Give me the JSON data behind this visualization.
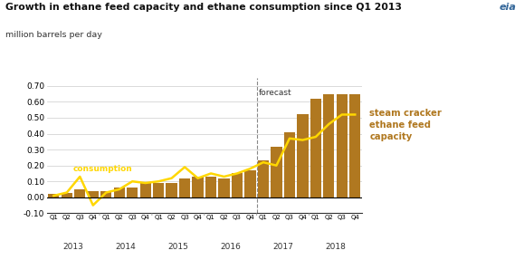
{
  "title": "Growth in ethane feed capacity and ethane consumption since Q1 2013",
  "subtitle": "million barrels per day",
  "bar_color": "#b07820",
  "line_color": "#ffd700",
  "line_label_color": "#ffd700",
  "bar_label_color": "#b07820",
  "forecast_line_color": "#888888",
  "background_color": "#ffffff",
  "text_color": "#333333",
  "ylim": [
    -0.1,
    0.75
  ],
  "yticks": [
    -0.1,
    0.0,
    0.1,
    0.2,
    0.3,
    0.4,
    0.5,
    0.6,
    0.7
  ],
  "forecast_index": 16,
  "labels": [
    "Q1",
    "Q2",
    "Q3",
    "Q4",
    "Q1",
    "Q2",
    "Q3",
    "Q4",
    "Q1",
    "Q2",
    "Q3",
    "Q4",
    "Q1",
    "Q2",
    "Q3",
    "Q4",
    "Q1",
    "Q2",
    "Q3",
    "Q4",
    "Q1",
    "Q2",
    "Q3",
    "Q4"
  ],
  "year_labels": [
    "2013",
    "2014",
    "2015",
    "2016",
    "2017",
    "2018"
  ],
  "year_centers": [
    1.5,
    5.5,
    9.5,
    13.5,
    17.5,
    21.5
  ],
  "bar_values": [
    0.02,
    0.03,
    0.05,
    0.04,
    0.04,
    0.06,
    0.06,
    0.09,
    0.09,
    0.09,
    0.12,
    0.13,
    0.13,
    0.12,
    0.15,
    0.17,
    0.23,
    0.32,
    0.41,
    0.52,
    0.62,
    0.65,
    0.65,
    0.65
  ],
  "line_values": [
    0.01,
    0.03,
    0.13,
    -0.05,
    0.03,
    0.05,
    0.1,
    0.09,
    0.1,
    0.12,
    0.19,
    0.12,
    0.15,
    0.13,
    0.15,
    0.18,
    0.22,
    0.2,
    0.37,
    0.36,
    0.38,
    0.46,
    0.52,
    0.52
  ],
  "year_boundaries": [
    3.5,
    7.5,
    11.5,
    15.5,
    19.5
  ]
}
